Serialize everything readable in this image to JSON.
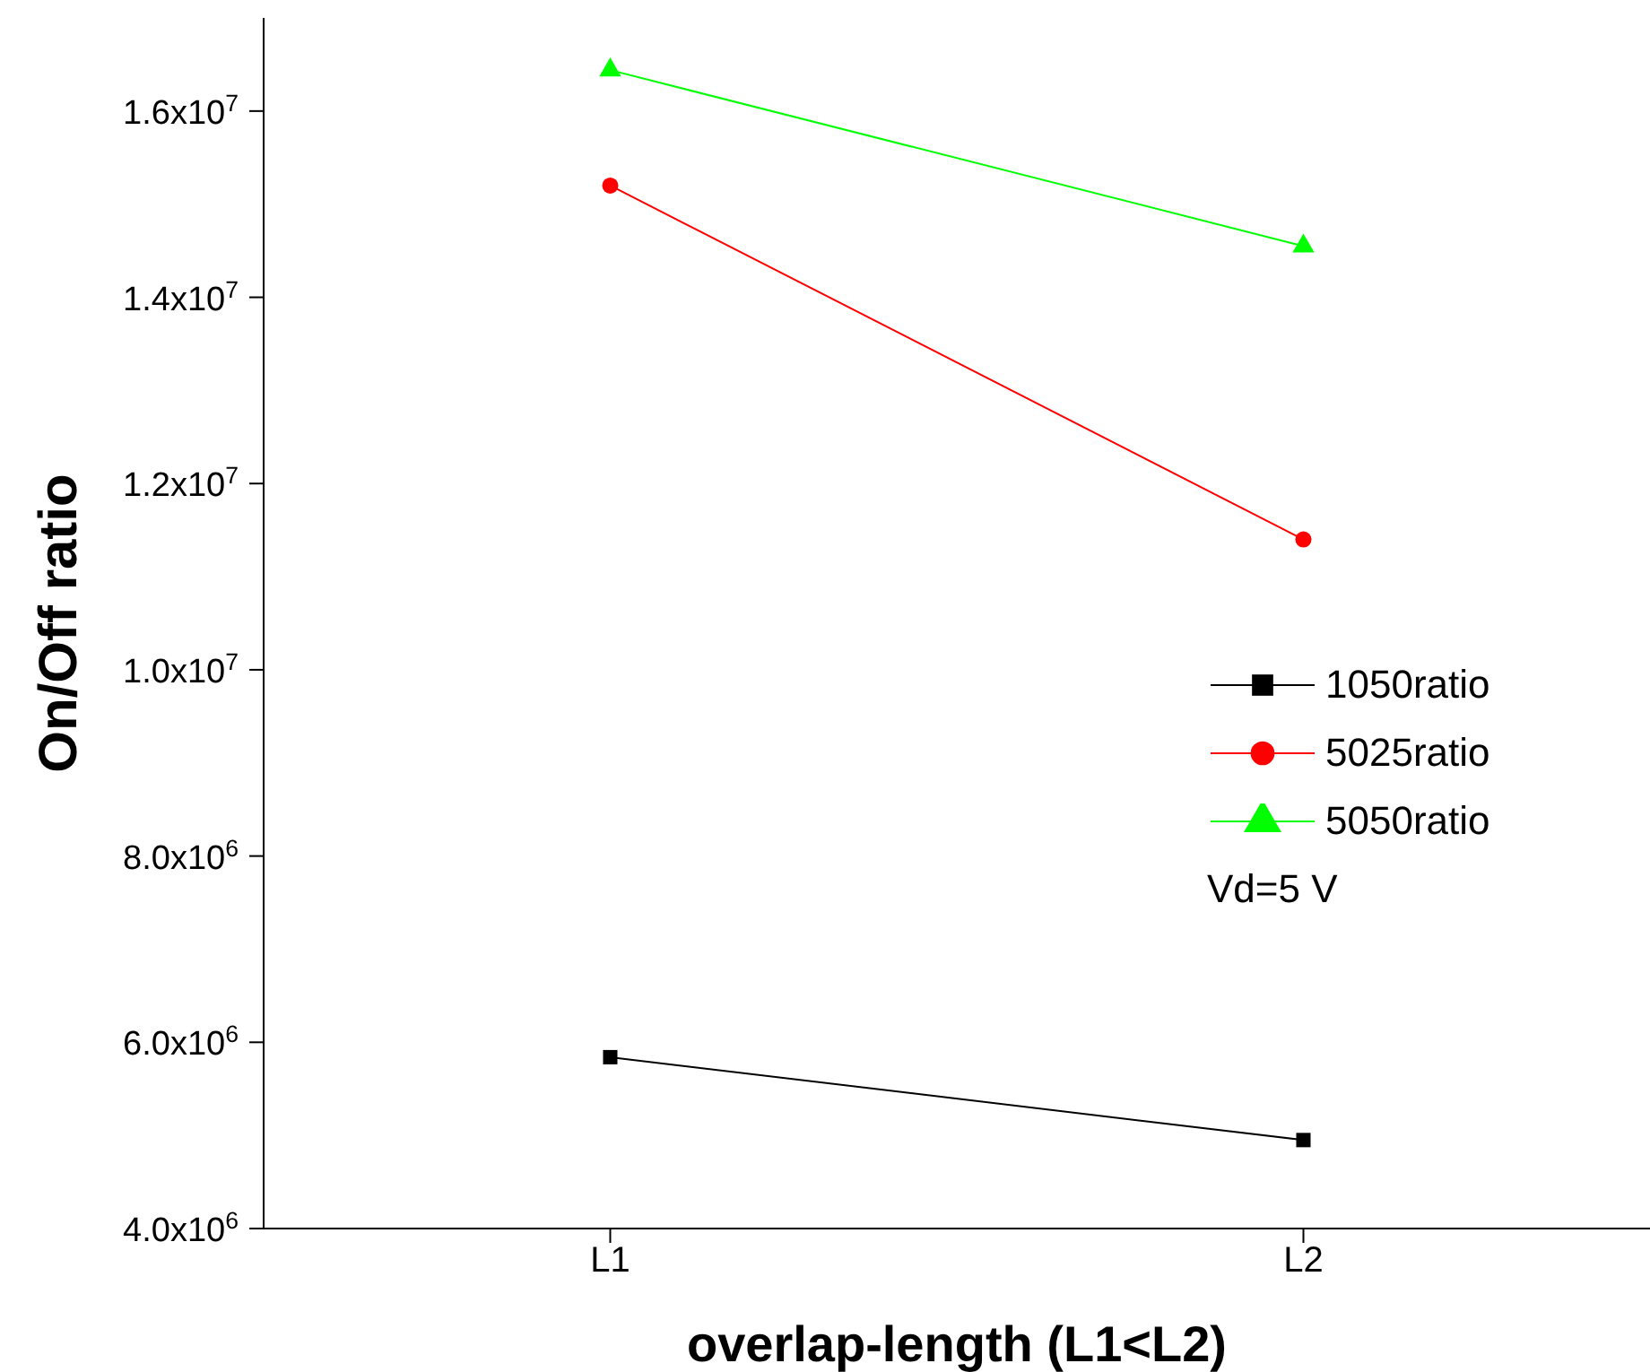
{
  "chart_data": {
    "type": "line",
    "xlabel": "overlap-length (L1<L2)",
    "ylabel": "On/Off ratio",
    "categories": [
      "L1",
      "L2"
    ],
    "series": [
      {
        "name": "1050ratio",
        "color": "#000000",
        "marker": "square",
        "values": [
          5840000,
          4950000
        ]
      },
      {
        "name": "5025ratio",
        "color": "#ff0000",
        "marker": "circle",
        "values": [
          15200000,
          11400000
        ]
      },
      {
        "name": "5050ratio",
        "color": "#00ff00",
        "marker": "triangle",
        "values": [
          16440000,
          14550000
        ]
      }
    ],
    "ylim": [
      4000000,
      17000000
    ],
    "yticks": [
      {
        "value": 4000000,
        "label": "4.0x10$^{6}$"
      },
      {
        "value": 6000000,
        "label": "6.0x10$^{6}$"
      },
      {
        "value": 8000000,
        "label": "8.0x10$^{6}$"
      },
      {
        "value": 10000000,
        "label": "1.0x10$^{7}$"
      },
      {
        "value": 12000000,
        "label": "1.2x10$^{7}$"
      },
      {
        "value": 14000000,
        "label": "1.4x10$^{7}$"
      },
      {
        "value": 16000000,
        "label": "1.6x10$^{7}$"
      }
    ],
    "grid": false,
    "legend": "right",
    "annotations": [
      "Vd=5 V"
    ]
  }
}
